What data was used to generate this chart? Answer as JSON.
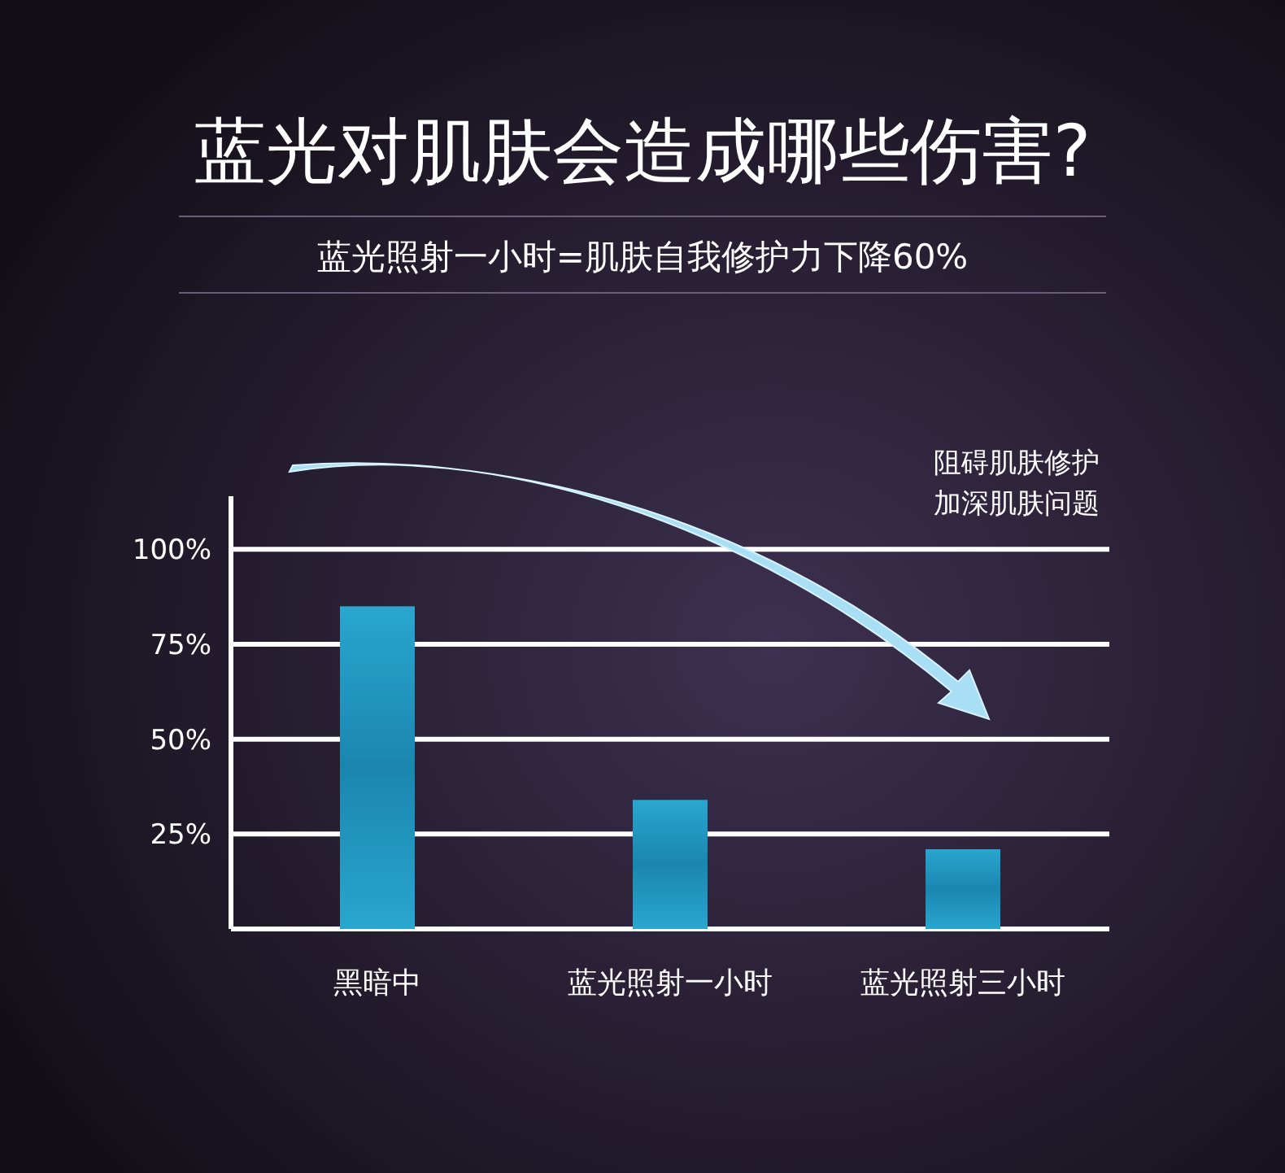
{
  "chart_data": {
    "type": "bar",
    "title": "蓝光对肌肤会造成哪些伤害?",
    "subtitle": "蓝光照射一小时=肌肤自我修护力下降60%",
    "categories": [
      "黑暗中",
      "蓝光照射一小时",
      "蓝光照射三小时"
    ],
    "values": [
      85,
      34,
      21
    ],
    "color": "#1a86b0",
    "ylim": [
      0,
      114
    ],
    "yticks": [
      {
        "value": 25,
        "label": "25%"
      },
      {
        "value": 50,
        "label": "50%"
      },
      {
        "value": 75,
        "label": "75%"
      },
      {
        "value": 100,
        "label": "100%"
      }
    ],
    "grid": "y",
    "annotations": [
      "阻碍肌肤修护",
      "加深肌肤问题"
    ]
  }
}
